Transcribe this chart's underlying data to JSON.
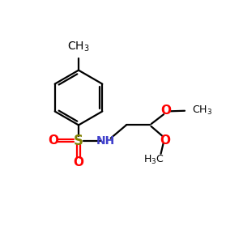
{
  "bg_color": "#ffffff",
  "bond_color": "#000000",
  "bond_width": 1.6,
  "S_color": "#808000",
  "O_color": "#ff0000",
  "N_color": "#4040cc",
  "C_color": "#000000",
  "font_size": 9,
  "fig_width": 3.0,
  "fig_height": 3.0,
  "xlim": [
    0,
    10
  ],
  "ylim": [
    0,
    10
  ]
}
